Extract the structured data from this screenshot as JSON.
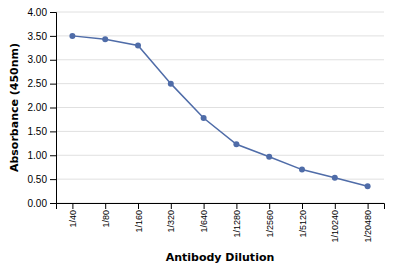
{
  "chart_data": {
    "type": "line",
    "xlabel": "Antibody Dilution",
    "ylabel": "Absorbance (450nm)",
    "categories": [
      "1/40",
      "1/80",
      "1/160",
      "1/320",
      "1/640",
      "1/1280",
      "1/2560",
      "1/5120",
      "1/10240",
      "1/20480"
    ],
    "values": [
      3.5,
      3.43,
      3.3,
      2.5,
      1.78,
      1.23,
      0.97,
      0.7,
      0.53,
      0.35
    ],
    "color": "#4F6CA8",
    "marker": "circle",
    "grid": true,
    "ylim": [
      0.0,
      4.0
    ],
    "yticks": [
      {
        "value": 0.0,
        "label": "0.00"
      },
      {
        "value": 0.5,
        "label": "0.50"
      },
      {
        "value": 1.0,
        "label": "1.00"
      },
      {
        "value": 1.5,
        "label": "1.50"
      },
      {
        "value": 2.0,
        "label": "2.00"
      },
      {
        "value": 2.5,
        "label": "2.50"
      },
      {
        "value": 3.0,
        "label": "3.00"
      },
      {
        "value": 3.5,
        "label": "3.50"
      },
      {
        "value": 4.0,
        "label": "4.00"
      }
    ]
  }
}
